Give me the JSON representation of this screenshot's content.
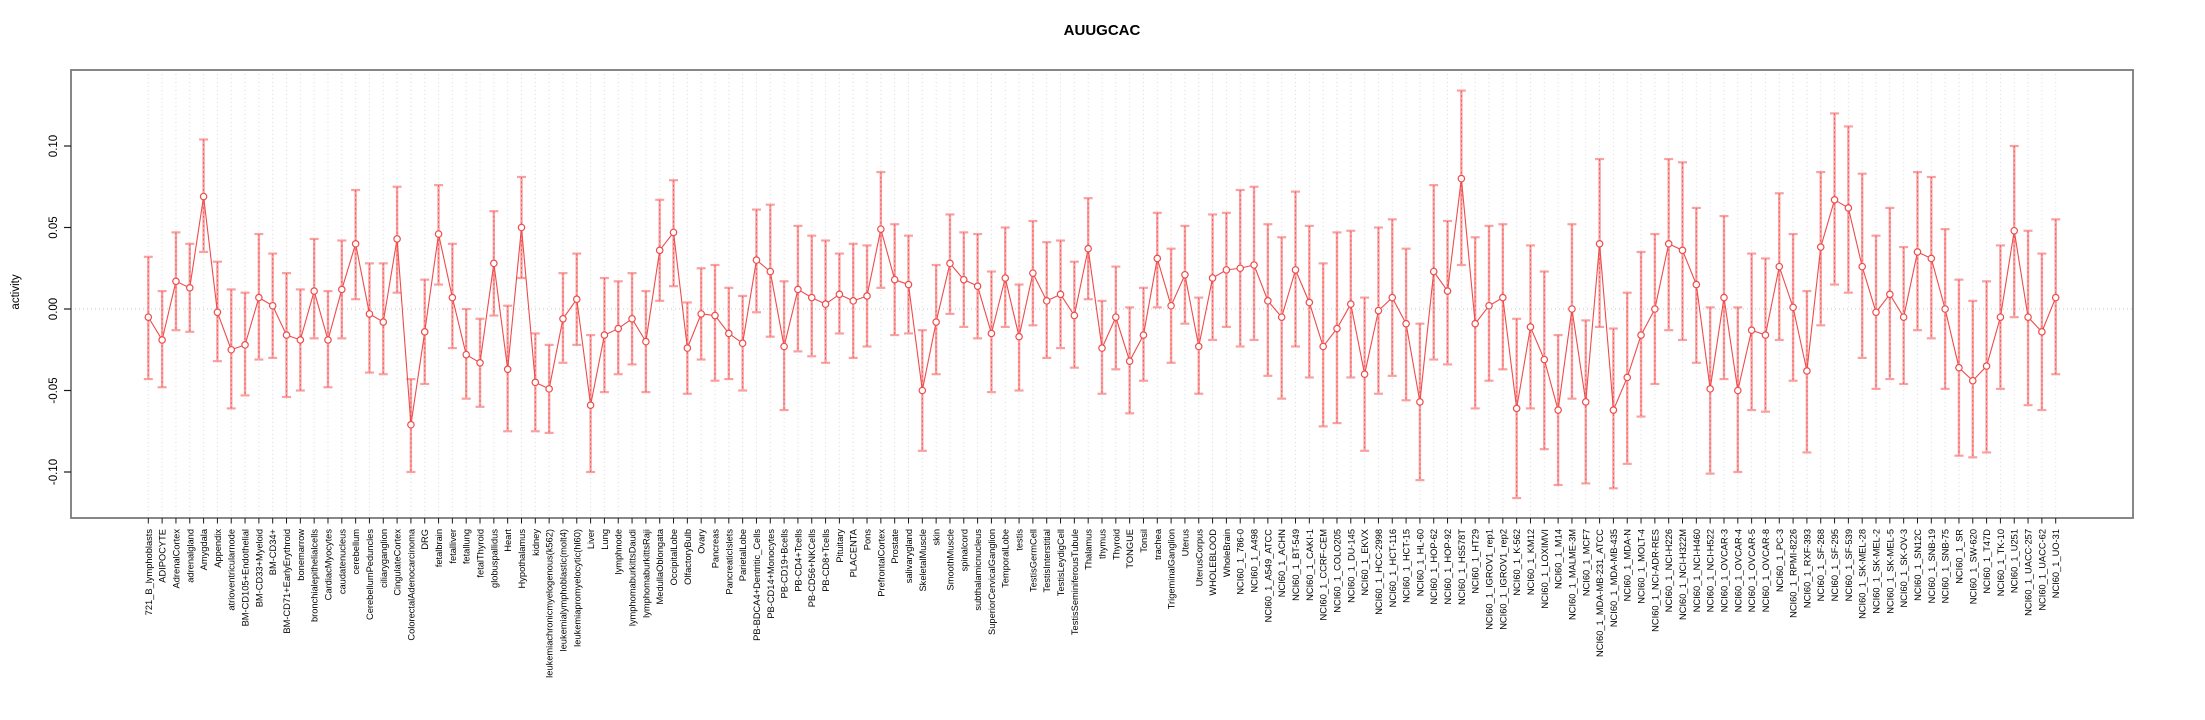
{
  "chart_data": {
    "type": "line",
    "subtype": "error-bar-series",
    "title": "AUUGCAC",
    "xlabel": "",
    "ylabel": "activity",
    "ylim": [
      -0.123,
      0.147
    ],
    "yticks": [
      -0.1,
      -0.05,
      0.0,
      0.05,
      0.1
    ],
    "grid": "vertical dotted gridline per category; dotted horizontal line at y=0",
    "legend": "none",
    "marker": "open-circle",
    "colors": {
      "series": "#ef4b4b",
      "error_bars": "#f9a1a1",
      "grid": "#dcdcdc",
      "zero_line": "#c9c9c9",
      "frame": "#7a7a7a",
      "text": "#000000"
    },
    "categories": [
      "721_B_lymphoblasts",
      "ADIPOCYTE",
      "AdrenalCortex",
      "adrenalgland",
      "Amygdala",
      "Appendix",
      "atrioventricularnode",
      "BM-CD105+Endothelial",
      "BM-CD33+Myeloid",
      "BM-CD34+",
      "BM-CD71+EarlyErythroid",
      "bonemarrow",
      "bronchialepithelialcells",
      "CardiacMyocytes",
      "caudatenucleus",
      "cerebellum",
      "CerebellumPeduncles",
      "ciliaryganglion",
      "CingulateCortex",
      "ColorectalAdenocarcinoma",
      "DRG",
      "fetalbrain",
      "fetalliver",
      "fetallung",
      "fetalThyroid",
      "globuspallidus",
      "Heart",
      "Hypothalamus",
      "kidney",
      "leukemiachronicmyelogenous(k562)",
      "leukemialymphoblastic(molt4)",
      "leukemiapromyelocytic(hl60)",
      "Liver",
      "Lung",
      "lymphnode",
      "lymphomaburkittsDaudi",
      "lymphomaburkittsRaji",
      "MedullaOblongata",
      "OccipitalLobe",
      "OlfactoryBulb",
      "Ovary",
      "Pancreas",
      "PancreaticIslets",
      "ParietalLobe",
      "PB-BDCA4+Dentritic_Cells",
      "PB-CD14+Monocytes",
      "PB-CD19+Bcells",
      "PB-CD4+Tcells",
      "PB-CD56+NKCells",
      "PB-CD8+Tcells",
      "Pituitary",
      "PLACENTA",
      "Pons",
      "PrefrontalCortex",
      "Prostate",
      "salivarygland",
      "SkeletalMuscle",
      "skin",
      "SmoothMuscle",
      "spinalcord",
      "subthalamicnucleus",
      "SuperiorCervicalGanglion",
      "TemporalLobe",
      "testis",
      "TestisGermCell",
      "TestisInterstitial",
      "TestisLeydigCell",
      "TestisSeminiferousTubule",
      "Thalamus",
      "thymus",
      "Thyroid",
      "TONGUE",
      "Tonsil",
      "trachea",
      "TrigeminalGanglion",
      "Uterus",
      "UterusCorpus",
      "WHOLEBLOOD",
      "WholeBrain",
      "NCI60_1_786-0",
      "NCI60_1_A498",
      "NCI60_1_A549_ATCC",
      "NCI60_1_ACHN",
      "NCI60_1_BT-549",
      "NCI60_1_CAKI-1",
      "NCI60_1_CCRF-CEM",
      "NCI60_1_COLO205",
      "NCI60_1_DU-145",
      "NCI60_1_EKVX",
      "NCI60_1_HCC-2998",
      "NCI60_1_HCT-116",
      "NCI60_1_HCT-15",
      "NCI60_1_HL-60",
      "NCI60_1_HOP-62",
      "NCI60_1_HOP-92",
      "NCI60_1_HS578T",
      "NCI60_1_HT29",
      "NCI60_1_IGROV1_rep1",
      "NCI60_1_IGROV1_rep2",
      "NCI60_1_K-562",
      "NCI60_1_KM12",
      "NCI60_1_LOXIMVI",
      "NCI60_1_M14",
      "NCI60_1_MALME-3M",
      "NCI60_1_MCF7",
      "NCI60_1_MDA-MB-231_ATCC",
      "NCI60_1_MDA-MB-435",
      "NCI60_1_MDA-N",
      "NCI60_1_MOLT-4",
      "NCI60_1_NCI-ADR-RES",
      "NCI60_1_NCI-H226",
      "NCI60_1_NCI-H322M",
      "NCI60_1_NCI-H460",
      "NCI60_1_NCI-H522",
      "NCI60_1_OVCAR-3",
      "NCI60_1_OVCAR-4",
      "NCI60_1_OVCAR-5",
      "NCI60_1_OVCAR-8",
      "NCI60_1_PC-3",
      "NCI60_1_RPMI-8226",
      "NCI60_1_RXF-393",
      "NCI60_1_SF-268",
      "NCI60_1_SF-295",
      "NCI60_1_SF-539",
      "NCI60_1_SK-MEL-28",
      "NCI60_1_SK-MEL-2",
      "NCI60_1_SK-MEL-5",
      "NCI60_1_SK-OV-3",
      "NCI60_1_SN12C",
      "NCI60_1_SNB-19",
      "NCI60_1_SNB-75",
      "NCI60_1_SR",
      "NCI60_1_SW-620",
      "NCI60_1_T47D",
      "NCI60_1_TK-10",
      "NCI60_1_U251",
      "NCI60_1_UACC-257",
      "NCI60_1_UACC-62",
      "NCI60_1_UO-31"
    ],
    "series": [
      {
        "name": "activity",
        "values": [
          -0.005,
          -0.019,
          0.017,
          0.013,
          0.069,
          -0.002,
          -0.025,
          -0.022,
          0.007,
          0.002,
          -0.016,
          -0.019,
          0.011,
          -0.019,
          0.012,
          0.04,
          -0.003,
          -0.008,
          0.043,
          -0.071,
          -0.014,
          0.046,
          0.007,
          -0.028,
          -0.033,
          0.028,
          -0.037,
          0.05,
          -0.045,
          -0.049,
          -0.006,
          0.006,
          -0.059,
          -0.016,
          -0.012,
          -0.006,
          -0.02,
          0.036,
          0.047,
          -0.024,
          -0.003,
          -0.004,
          -0.015,
          -0.021,
          0.03,
          0.023,
          -0.023,
          0.012,
          0.007,
          0.003,
          0.009,
          0.005,
          0.008,
          0.049,
          0.018,
          0.015,
          -0.05,
          -0.008,
          0.028,
          0.018,
          0.014,
          -0.015,
          0.019,
          -0.017,
          0.022,
          0.005,
          0.009,
          -0.004,
          0.037,
          -0.024,
          -0.005,
          -0.032,
          -0.016,
          0.031,
          0.002,
          0.021,
          -0.023,
          0.019,
          0.024,
          0.025,
          0.027,
          0.005,
          -0.005,
          0.024,
          0.004,
          -0.023,
          -0.012,
          0.003,
          -0.04,
          -0.001,
          0.007,
          -0.009,
          -0.057,
          0.023,
          0.011,
          0.08,
          -0.009,
          0.002,
          0.007,
          -0.061,
          -0.011,
          -0.031,
          -0.062,
          0.0,
          -0.057,
          0.04,
          -0.062,
          -0.042,
          -0.016,
          0.0,
          0.04,
          0.036,
          0.015,
          -0.049,
          0.007,
          -0.05,
          -0.013,
          -0.016,
          0.026,
          0.001,
          -0.038,
          0.038,
          0.067,
          0.062,
          0.026,
          -0.002,
          0.009,
          -0.005,
          0.035,
          0.031,
          0.0,
          -0.036,
          -0.044,
          -0.035,
          -0.005,
          0.048,
          -0.005,
          -0.014,
          0.007
        ],
        "err_low": [
          -0.043,
          -0.048,
          -0.013,
          -0.014,
          0.035,
          -0.032,
          -0.061,
          -0.053,
          -0.031,
          -0.03,
          -0.054,
          -0.05,
          -0.018,
          -0.048,
          -0.018,
          0.006,
          -0.039,
          -0.04,
          0.01,
          -0.1,
          -0.046,
          0.015,
          -0.024,
          -0.055,
          -0.06,
          -0.004,
          -0.075,
          0.019,
          -0.075,
          -0.076,
          -0.033,
          -0.022,
          -0.1,
          -0.051,
          -0.04,
          -0.034,
          -0.051,
          0.005,
          0.014,
          -0.052,
          -0.031,
          -0.044,
          -0.043,
          -0.05,
          -0.002,
          -0.017,
          -0.062,
          -0.026,
          -0.029,
          -0.033,
          -0.015,
          -0.03,
          -0.023,
          0.013,
          -0.016,
          -0.015,
          -0.087,
          -0.04,
          -0.003,
          -0.011,
          -0.018,
          -0.051,
          -0.011,
          -0.05,
          -0.01,
          -0.03,
          -0.024,
          -0.036,
          0.006,
          -0.052,
          -0.037,
          -0.064,
          -0.044,
          0.001,
          -0.033,
          -0.009,
          -0.052,
          -0.019,
          -0.011,
          -0.023,
          -0.019,
          -0.041,
          -0.055,
          -0.023,
          -0.042,
          -0.072,
          -0.07,
          -0.042,
          -0.087,
          -0.052,
          -0.041,
          -0.056,
          -0.105,
          -0.031,
          -0.034,
          0.027,
          -0.061,
          -0.044,
          -0.037,
          -0.116,
          -0.061,
          -0.086,
          -0.108,
          -0.055,
          -0.107,
          -0.011,
          -0.11,
          -0.095,
          -0.066,
          -0.046,
          -0.013,
          -0.019,
          -0.033,
          -0.101,
          -0.043,
          -0.1,
          -0.062,
          -0.063,
          -0.019,
          -0.044,
          -0.088,
          -0.01,
          0.015,
          0.01,
          -0.03,
          -0.049,
          -0.043,
          -0.046,
          -0.013,
          -0.018,
          -0.049,
          -0.09,
          -0.091,
          -0.088,
          -0.049,
          -0.005,
          -0.059,
          -0.062,
          -0.04
        ],
        "err_high": [
          0.032,
          0.011,
          0.047,
          0.04,
          0.104,
          0.029,
          0.012,
          0.01,
          0.046,
          0.034,
          0.022,
          0.012,
          0.043,
          0.011,
          0.042,
          0.073,
          0.028,
          0.028,
          0.075,
          -0.043,
          0.018,
          0.076,
          0.04,
          0.0,
          -0.006,
          0.06,
          0.002,
          0.081,
          -0.015,
          -0.022,
          0.022,
          0.034,
          -0.016,
          0.019,
          0.017,
          0.022,
          0.011,
          0.067,
          0.079,
          0.004,
          0.025,
          0.027,
          0.013,
          0.008,
          0.061,
          0.064,
          0.017,
          0.051,
          0.045,
          0.042,
          0.034,
          0.04,
          0.039,
          0.084,
          0.052,
          0.045,
          -0.013,
          0.027,
          0.058,
          0.047,
          0.046,
          0.023,
          0.05,
          0.015,
          0.054,
          0.041,
          0.042,
          0.029,
          0.068,
          0.005,
          0.026,
          0.001,
          0.013,
          0.059,
          0.037,
          0.051,
          0.007,
          0.058,
          0.059,
          0.073,
          0.075,
          0.052,
          0.044,
          0.072,
          0.051,
          0.028,
          0.047,
          0.048,
          0.007,
          0.05,
          0.055,
          0.037,
          -0.009,
          0.076,
          0.054,
          0.134,
          0.044,
          0.051,
          0.052,
          -0.006,
          0.039,
          0.023,
          -0.016,
          0.052,
          -0.007,
          0.092,
          -0.012,
          0.01,
          0.035,
          0.046,
          0.092,
          0.09,
          0.062,
          0.001,
          0.057,
          0.001,
          0.034,
          0.031,
          0.071,
          0.046,
          0.011,
          0.084,
          0.12,
          0.112,
          0.083,
          0.045,
          0.062,
          0.038,
          0.084,
          0.081,
          0.049,
          0.018,
          0.005,
          0.017,
          0.039,
          0.1,
          0.048,
          0.034,
          0.055
        ]
      }
    ]
  }
}
